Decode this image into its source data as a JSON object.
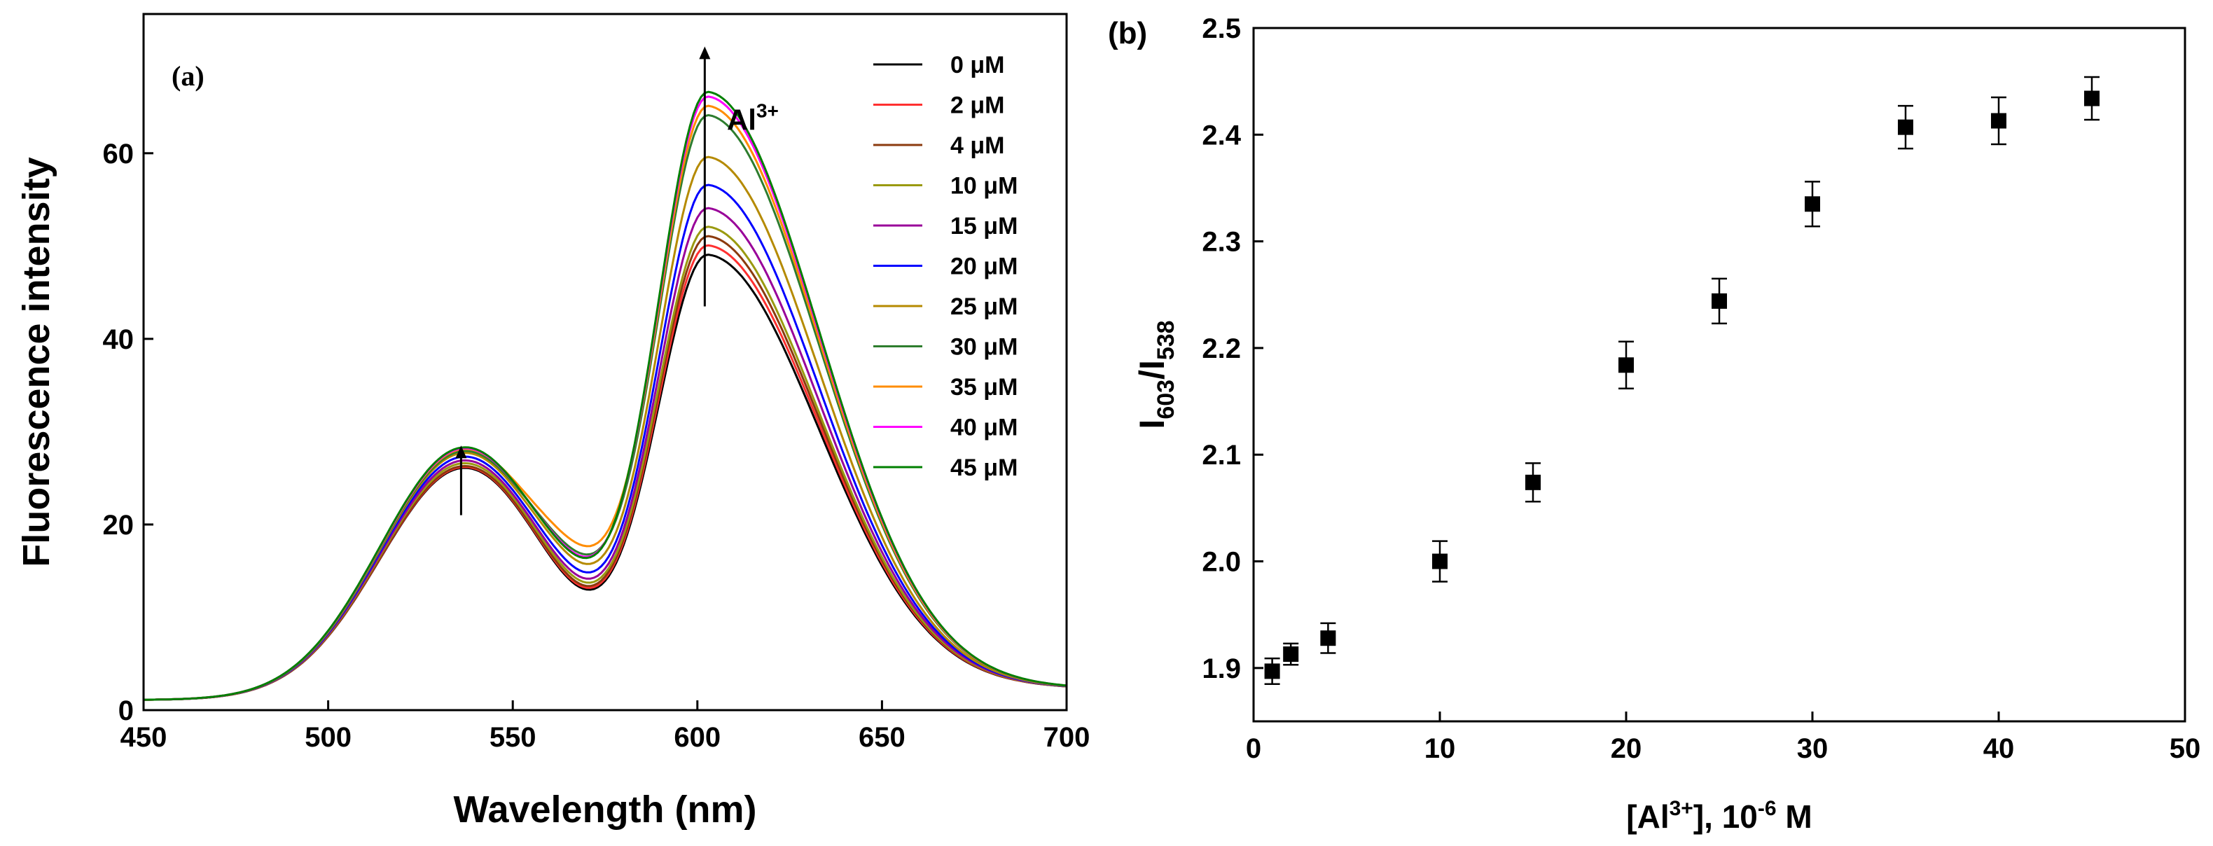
{
  "chart_data": [
    {
      "type": "line",
      "panel_label": "(a)",
      "title": "",
      "xlabel": "Wavelength (nm)",
      "ylabel": "Fluorescence intensity",
      "xlim": [
        450,
        700
      ],
      "ylim": [
        0,
        75
      ],
      "xticks": [
        450,
        500,
        550,
        600,
        650,
        700
      ],
      "yticks": [
        0,
        20,
        40,
        60
      ],
      "annotation": {
        "text": "Al",
        "sup": "3+"
      },
      "series": [
        {
          "name": "0 μM",
          "color": "#000000",
          "peak1": 25.0,
          "peak2": 47.5,
          "valley": 16.2
        },
        {
          "name": "2 μM",
          "color": "#ff3030",
          "peak1": 25.1,
          "peak2": 48.5,
          "valley": 16.3
        },
        {
          "name": "4 μM",
          "color": "#8b3a0e",
          "peak1": 25.2,
          "peak2": 49.5,
          "valley": 16.4
        },
        {
          "name": "10 μM",
          "color": "#9a9a10",
          "peak1": 25.5,
          "peak2": 50.5,
          "valley": 16.6
        },
        {
          "name": "15 μM",
          "color": "#990099",
          "peak1": 25.8,
          "peak2": 52.5,
          "valley": 16.8
        },
        {
          "name": "20 μM",
          "color": "#0000ff",
          "peak1": 26.2,
          "peak2": 55.0,
          "valley": 17.2
        },
        {
          "name": "25 μM",
          "color": "#b58a00",
          "peak1": 26.6,
          "peak2": 58.0,
          "valley": 17.8
        },
        {
          "name": "30 μM",
          "color": "#2e7d2e",
          "peak1": 26.8,
          "peak2": 62.5,
          "valley": 18.5
        },
        {
          "name": "35 μM",
          "color": "#ff8c00",
          "peak1": 27.0,
          "peak2": 63.5,
          "valley": 19.3
        },
        {
          "name": "40 μM",
          "color": "#ff00ff",
          "peak1": 27.1,
          "peak2": 64.5,
          "valley": 18.0
        },
        {
          "name": "45 μM",
          "color": "#008000",
          "peak1": 27.2,
          "peak2": 65.0,
          "valley": 17.8
        }
      ]
    },
    {
      "type": "scatter",
      "panel_label": "(b)",
      "title": "",
      "xlabel": "[Al3+], 10-6 M",
      "xlabel_parts": {
        "a": "[Al",
        "sup1": "3+",
        "b": "], 10",
        "sup2": "-6",
        "c": " M"
      },
      "ylabel": "I603/I538",
      "ylabel_parts": {
        "a": "I",
        "sub1": "603",
        "b": "/I",
        "sub2": "538"
      },
      "xlim": [
        0,
        50
      ],
      "ylim": [
        1.85,
        2.5
      ],
      "xticks": [
        0,
        10,
        20,
        30,
        40,
        50
      ],
      "yticks": [
        1.9,
        2.0,
        2.1,
        2.2,
        2.3,
        2.4,
        2.5
      ],
      "marker_color": "#000000",
      "x": [
        1,
        2,
        4,
        10,
        15,
        20,
        25,
        30,
        35,
        40,
        45
      ],
      "y": [
        1.897,
        1.913,
        1.928,
        2.0,
        2.074,
        2.184,
        2.244,
        2.335,
        2.407,
        2.413,
        2.434
      ],
      "err": [
        0.012,
        0.01,
        0.014,
        0.019,
        0.018,
        0.022,
        0.021,
        0.021,
        0.02,
        0.022,
        0.02
      ]
    }
  ]
}
